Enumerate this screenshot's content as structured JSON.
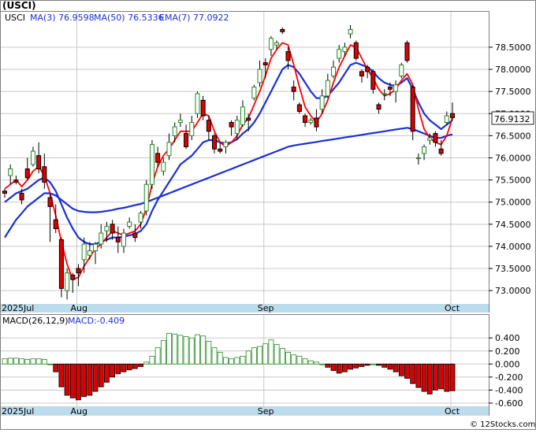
{
  "title": "(USCI)",
  "watermark": "© 12Stocks.com",
  "price_legend": {
    "symbol": "USCI",
    "ma3": "MA(3)  76.9598",
    "ma50": "MA(50)  76.5336",
    "ema7": "EMA(7)  77.0922"
  },
  "macd_legend": {
    "label": "MACD(26,12,9)",
    "value": "MACD:-0.409"
  },
  "last_price_tag": "76.9132",
  "colors": {
    "up_candle": "#228b22",
    "down_candle": "#dd0000",
    "ma3_line": "#ff0000",
    "ma_blue": "#1a2fd6",
    "macd_pos": "#228b22",
    "macd_neg": "#dd0000",
    "axis_bar": "#bcdcec",
    "grid": "#c8c8c8"
  },
  "chart_data": [
    {
      "type": "candlestick",
      "panel": "price",
      "ylim": [
        72.7,
        79.3
      ],
      "y_ticks": [
        "73.0000",
        "73.5000",
        "74.0000",
        "74.5000",
        "75.0000",
        "75.5000",
        "76.0000",
        "76.5000",
        "77.0000",
        "77.5000",
        "78.0000",
        "78.5000"
      ],
      "y_tick_values": [
        73.0,
        73.5,
        74.0,
        74.5,
        75.0,
        75.5,
        76.0,
        76.5,
        77.0,
        77.5,
        78.0,
        78.5
      ],
      "x_labels": [
        {
          "label": "2025Jul",
          "index": 0
        },
        {
          "label": "Aug",
          "index": 13
        },
        {
          "label": "Sep",
          "index": 46
        },
        {
          "label": "Oct",
          "index": 79
        }
      ],
      "series": [
        {
          "name": "USCI",
          "ohlc": [
            [
              75.25,
              75.3,
              75.1,
              75.2
            ],
            [
              75.6,
              75.85,
              75.4,
              75.75
            ],
            [
              75.5,
              75.6,
              75.4,
              75.45
            ],
            [
              75.2,
              75.3,
              74.95,
              75.05
            ],
            [
              75.75,
              76.0,
              75.5,
              75.55
            ],
            [
              75.85,
              76.25,
              75.8,
              76.15
            ],
            [
              76.05,
              76.35,
              75.65,
              75.75
            ],
            [
              75.8,
              76.1,
              75.3,
              75.45
            ],
            [
              75.1,
              75.2,
              74.1,
              74.9
            ],
            [
              74.6,
              74.95,
              74.3,
              74.4
            ],
            [
              74.15,
              74.2,
              72.85,
              73.05
            ],
            [
              73.0,
              73.5,
              72.8,
              73.4
            ],
            [
              73.35,
              73.4,
              72.95,
              73.25
            ],
            [
              73.5,
              73.6,
              73.1,
              73.4
            ],
            [
              73.7,
              74.2,
              73.4,
              74.05
            ],
            [
              73.8,
              74.1,
              73.7,
              73.9
            ],
            [
              73.9,
              74.1,
              73.6,
              74.05
            ],
            [
              74.05,
              74.5,
              73.95,
              74.3
            ],
            [
              74.35,
              74.55,
              74.1,
              74.45
            ],
            [
              74.5,
              74.6,
              74.15,
              74.3
            ],
            [
              74.2,
              74.45,
              73.85,
              74.1
            ],
            [
              74.0,
              74.4,
              73.85,
              74.3
            ],
            [
              74.45,
              74.65,
              74.4,
              74.55
            ],
            [
              74.3,
              74.5,
              74.1,
              74.2
            ],
            [
              74.55,
              74.8,
              74.4,
              74.75
            ],
            [
              74.8,
              75.5,
              74.7,
              75.4
            ],
            [
              75.4,
              76.4,
              75.3,
              76.3
            ],
            [
              76.1,
              76.25,
              75.8,
              75.9
            ],
            [
              75.7,
              76.0,
              75.6,
              75.9
            ],
            [
              76.05,
              76.55,
              75.95,
              76.35
            ],
            [
              76.5,
              76.8,
              76.35,
              76.7
            ],
            [
              76.8,
              77.0,
              76.7,
              76.85
            ],
            [
              76.55,
              76.75,
              76.2,
              76.25
            ],
            [
              76.5,
              76.95,
              76.4,
              76.8
            ],
            [
              77.0,
              77.5,
              76.9,
              77.45
            ],
            [
              77.3,
              77.4,
              76.85,
              76.95
            ],
            [
              76.85,
              76.95,
              76.4,
              76.6
            ],
            [
              76.5,
              76.55,
              76.1,
              76.2
            ],
            [
              76.2,
              76.35,
              76.1,
              76.15
            ],
            [
              76.25,
              76.4,
              76.1,
              76.35
            ],
            [
              76.8,
              76.85,
              76.5,
              76.7
            ],
            [
              76.55,
              76.95,
              76.4,
              76.85
            ],
            [
              76.75,
              77.3,
              76.7,
              77.15
            ],
            [
              76.9,
              77.0,
              76.6,
              76.85
            ],
            [
              77.35,
              77.65,
              77.3,
              77.6
            ],
            [
              77.7,
              78.2,
              77.6,
              78.0
            ],
            [
              78.15,
              78.25,
              77.8,
              78.1
            ],
            [
              78.45,
              78.75,
              78.3,
              78.7
            ],
            [
              78.55,
              78.65,
              78.45,
              78.6
            ],
            [
              78.9,
              78.95,
              78.8,
              78.85
            ],
            [
              78.4,
              78.5,
              78.0,
              78.2
            ],
            [
              77.6,
              77.75,
              77.3,
              77.5
            ],
            [
              77.2,
              77.25,
              77.0,
              77.05
            ],
            [
              76.95,
              77.0,
              76.7,
              76.8
            ],
            [
              76.8,
              76.9,
              76.75,
              76.85
            ],
            [
              76.9,
              77.1,
              76.6,
              76.7
            ],
            [
              77.1,
              77.55,
              77.0,
              77.4
            ],
            [
              77.4,
              77.9,
              77.35,
              77.75
            ],
            [
              77.85,
              78.2,
              77.8,
              78.05
            ],
            [
              78.25,
              78.55,
              78.15,
              78.45
            ],
            [
              78.4,
              78.6,
              78.3,
              78.5
            ],
            [
              78.8,
              79.0,
              78.7,
              78.9
            ],
            [
              78.6,
              78.65,
              78.2,
              78.25
            ],
            [
              77.95,
              78.0,
              77.7,
              77.85
            ],
            [
              78.05,
              78.1,
              77.8,
              77.95
            ],
            [
              77.95,
              78.0,
              77.45,
              77.55
            ],
            [
              77.2,
              77.25,
              77.0,
              77.1
            ],
            [
              77.45,
              77.55,
              77.3,
              77.45
            ],
            [
              77.6,
              77.7,
              77.4,
              77.55
            ],
            [
              77.5,
              77.75,
              77.25,
              77.65
            ],
            [
              77.85,
              78.15,
              77.8,
              78.1
            ],
            [
              78.6,
              78.65,
              78.15,
              78.2
            ],
            [
              77.6,
              77.65,
              76.4,
              76.6
            ],
            [
              76.0,
              76.1,
              75.85,
              76.0
            ],
            [
              76.1,
              76.3,
              75.95,
              76.25
            ],
            [
              76.4,
              76.55,
              76.3,
              76.45
            ],
            [
              76.55,
              76.6,
              76.25,
              76.35
            ],
            [
              76.2,
              76.4,
              76.05,
              76.1
            ],
            [
              76.8,
              77.05,
              76.75,
              76.95
            ],
            [
              77.0,
              77.25,
              76.85,
              76.91
            ]
          ]
        },
        {
          "name": "MA(3)",
          "values": [
            75.3,
            75.4,
            75.5,
            75.35,
            75.5,
            75.7,
            75.8,
            75.6,
            75.2,
            74.7,
            74.1,
            73.6,
            73.25,
            73.3,
            73.55,
            73.75,
            73.95,
            74.05,
            74.2,
            74.35,
            74.3,
            74.25,
            74.3,
            74.35,
            74.5,
            74.85,
            75.4,
            75.8,
            76.05,
            76.2,
            76.4,
            76.6,
            76.6,
            76.6,
            76.8,
            77.0,
            76.95,
            76.6,
            76.35,
            76.25,
            76.35,
            76.5,
            76.75,
            76.9,
            77.2,
            77.5,
            77.85,
            78.25,
            78.45,
            78.6,
            78.55,
            78.1,
            77.6,
            77.15,
            76.95,
            76.8,
            77.0,
            77.3,
            77.7,
            78.05,
            78.3,
            78.55,
            78.5,
            78.25,
            78.0,
            77.8,
            77.55,
            77.4,
            77.45,
            77.55,
            77.75,
            77.9,
            77.65,
            77.1,
            76.65,
            76.45,
            76.35,
            76.3,
            76.5,
            76.9
          ]
        },
        {
          "name": "MA(50)",
          "values": [
            74.2,
            74.4,
            74.6,
            74.75,
            74.9,
            75.0,
            75.1,
            75.2,
            75.2,
            75.15,
            75.05,
            74.95,
            74.85,
            74.8,
            74.78,
            74.77,
            74.77,
            74.78,
            74.8,
            74.82,
            74.85,
            74.87,
            74.9,
            74.93,
            74.96,
            75.0,
            75.05,
            75.1,
            75.15,
            75.2,
            75.25,
            75.3,
            75.35,
            75.4,
            75.45,
            75.5,
            75.55,
            75.6,
            75.65,
            75.7,
            75.75,
            75.8,
            75.85,
            75.9,
            75.95,
            76.0,
            76.05,
            76.1,
            76.15,
            76.2,
            76.25,
            76.28,
            76.3,
            76.32,
            76.34,
            76.36,
            76.38,
            76.4,
            76.42,
            76.44,
            76.46,
            76.48,
            76.5,
            76.52,
            76.54,
            76.56,
            76.58,
            76.6,
            76.62,
            76.64,
            76.66,
            76.68,
            76.65,
            76.6,
            76.55,
            76.5,
            76.45,
            76.45,
            76.5,
            76.53
          ]
        },
        {
          "name": "EMA(7)",
          "values": [
            75.0,
            75.1,
            75.2,
            75.25,
            75.3,
            75.4,
            75.5,
            75.55,
            75.45,
            75.25,
            74.95,
            74.65,
            74.4,
            74.2,
            74.1,
            74.05,
            74.05,
            74.1,
            74.15,
            74.2,
            74.2,
            74.22,
            74.25,
            74.28,
            74.35,
            74.5,
            74.8,
            75.05,
            75.25,
            75.45,
            75.65,
            75.85,
            75.95,
            76.05,
            76.2,
            76.35,
            76.4,
            76.4,
            76.35,
            76.33,
            76.35,
            76.42,
            76.55,
            76.65,
            76.8,
            77.0,
            77.25,
            77.5,
            77.75,
            78.0,
            78.1,
            78.05,
            77.9,
            77.7,
            77.5,
            77.35,
            77.35,
            77.4,
            77.55,
            77.7,
            77.9,
            78.1,
            78.15,
            78.1,
            78.05,
            77.95,
            77.8,
            77.7,
            77.65,
            77.62,
            77.7,
            77.8,
            77.55,
            77.25,
            77.0,
            76.85,
            76.75,
            76.65,
            76.75,
            76.85
          ]
        }
      ]
    },
    {
      "type": "bar",
      "panel": "macd",
      "title": "MACD(26,12,9)",
      "ylim": [
        -0.66,
        0.56
      ],
      "y_ticks": [
        "0.400",
        "0.200",
        "0.000",
        "-0.200",
        "-0.400",
        "-0.600"
      ],
      "y_tick_values": [
        0.4,
        0.2,
        0.0,
        -0.2,
        -0.4,
        -0.6
      ],
      "x_labels": [
        {
          "label": "2025Jul",
          "index": 0
        },
        {
          "label": "Aug",
          "index": 13
        },
        {
          "label": "Sep",
          "index": 46
        },
        {
          "label": "Oct",
          "index": 79
        }
      ],
      "values": [
        0.08,
        0.09,
        0.09,
        0.08,
        0.07,
        0.08,
        0.08,
        0.07,
        0.0,
        -0.12,
        -0.35,
        -0.48,
        -0.52,
        -0.55,
        -0.5,
        -0.48,
        -0.42,
        -0.35,
        -0.28,
        -0.2,
        -0.15,
        -0.12,
        -0.09,
        -0.07,
        -0.04,
        0.03,
        0.12,
        0.25,
        0.36,
        0.47,
        0.46,
        0.44,
        0.42,
        0.4,
        0.45,
        0.43,
        0.35,
        0.25,
        0.18,
        0.1,
        0.08,
        0.1,
        0.12,
        0.2,
        0.25,
        0.27,
        0.31,
        0.37,
        0.3,
        0.24,
        0.18,
        0.14,
        0.12,
        0.08,
        0.05,
        0.03,
        0.0,
        -0.05,
        -0.1,
        -0.14,
        -0.12,
        -0.08,
        -0.06,
        -0.04,
        -0.02,
        0.0,
        -0.02,
        -0.05,
        -0.08,
        -0.12,
        -0.18,
        -0.22,
        -0.3,
        -0.36,
        -0.42,
        -0.46,
        -0.4,
        -0.38,
        -0.42,
        -0.41
      ]
    }
  ]
}
